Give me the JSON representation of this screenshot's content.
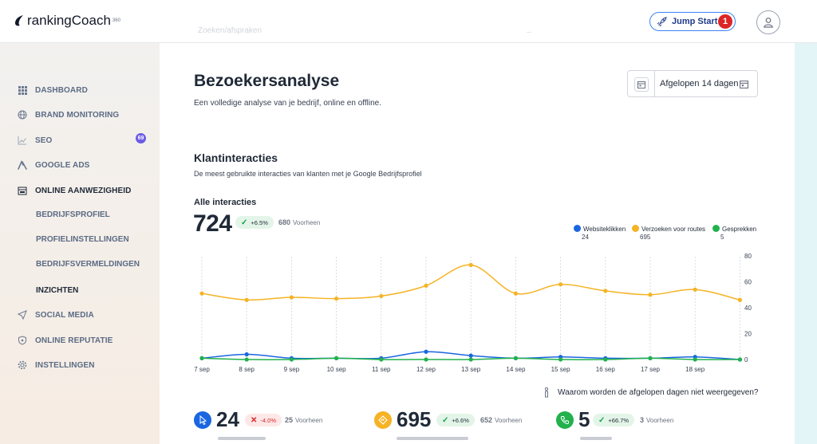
{
  "header": {
    "brand": "rankingCoach",
    "brand_sup": "360",
    "faded_search": "Zoeken/afspraken",
    "jump_start_label": "Jump Start",
    "jump_start_badge": "1",
    "icons": {
      "rocket": "rocket-icon",
      "user": "user-icon"
    }
  },
  "sidebar": {
    "items": [
      {
        "label": "DASHBOARD",
        "icon": "grid-icon"
      },
      {
        "label": "BRAND MONITORING",
        "icon": "globe-icon"
      },
      {
        "label": "SEO",
        "icon": "chart-line-icon",
        "badge": "69"
      },
      {
        "label": "GOOGLE ADS",
        "icon": "ads-icon"
      },
      {
        "label": "ONLINE AANWEZIGHEID",
        "icon": "storefront-icon"
      },
      {
        "label": "SOCIAL MEDIA",
        "icon": "send-icon"
      },
      {
        "label": "ONLINE REPUTATIE",
        "icon": "shield-icon"
      },
      {
        "label": "INSTELLINGEN",
        "icon": "gear-icon"
      }
    ],
    "subitems": [
      {
        "label": "BEDRIJFSPROFIEL"
      },
      {
        "label": "PROFIELINSTELLINGEN"
      },
      {
        "label": "BEDRIJFSVERMELDINGEN"
      },
      {
        "label": "INZICHTEN"
      }
    ]
  },
  "page": {
    "title": "Bezoekersanalyse",
    "subtitle": "Een volledige analyse van je bedrijf, online en offline.",
    "date_range": "Afgelopen 14 dagen"
  },
  "interactions": {
    "title": "Klantinteracties",
    "subtitle": "De meest gebruikte interacties van klanten met je Google Bedrijfsprofiel",
    "all_label": "Alle interacties",
    "total": "724",
    "change": "+6.5%",
    "previous_value": "680",
    "previous_label": "Voorheen"
  },
  "legend": [
    {
      "name": "Websiteklikken",
      "value": "24",
      "color": "#1a66e0"
    },
    {
      "name": "Verzoeken voor routes",
      "value": "695",
      "color": "#f5b325"
    },
    {
      "name": "Gesprekken",
      "value": "5",
      "color": "#22b14c"
    }
  ],
  "chart_data": {
    "type": "line",
    "x": [
      "7 sep",
      "8 sep",
      "9 sep",
      "10 sep",
      "11 sep",
      "12 sep",
      "13 sep",
      "14 sep",
      "15 sep",
      "16 sep",
      "17 sep",
      "18 sep",
      ""
    ],
    "y_ticks": [
      "80",
      "60",
      "40",
      "20",
      "0"
    ],
    "ylim": [
      0,
      80
    ],
    "grid": "vertical-dashed",
    "legend_position": "top-right",
    "series": [
      {
        "name": "Websiteklikken",
        "color": "#1a66e0",
        "values": [
          1,
          4,
          1,
          1,
          1,
          6,
          3,
          1,
          2,
          1,
          1,
          2,
          0
        ]
      },
      {
        "name": "Verzoeken voor routes",
        "color": "#f5b325",
        "values": [
          51,
          46,
          48,
          47,
          49,
          57,
          73,
          51,
          58,
          53,
          50,
          54,
          46
        ]
      },
      {
        "name": "Gesprekken",
        "color": "#22b14c",
        "values": [
          1,
          0,
          0,
          1,
          0,
          0,
          0,
          1,
          0,
          0,
          1,
          0,
          0
        ]
      }
    ]
  },
  "info_text": "Waarom worden de afgelopen dagen niet weergegeven?",
  "kpis": [
    {
      "value": "24",
      "change": "-4.0%",
      "change_dir": "down",
      "previous_value": "25",
      "previous_label": "Voorheen",
      "icon": "cursor-icon",
      "color": "#1a66e0"
    },
    {
      "value": "695",
      "change": "+6.6%",
      "change_dir": "up",
      "previous_value": "652",
      "previous_label": "Voorheen",
      "icon": "directions-icon",
      "color": "#f5b325"
    },
    {
      "value": "5",
      "change": "+66.7%",
      "change_dir": "up",
      "previous_value": "3",
      "previous_label": "Voorheen",
      "icon": "phone-icon",
      "color": "#22b14c"
    }
  ]
}
